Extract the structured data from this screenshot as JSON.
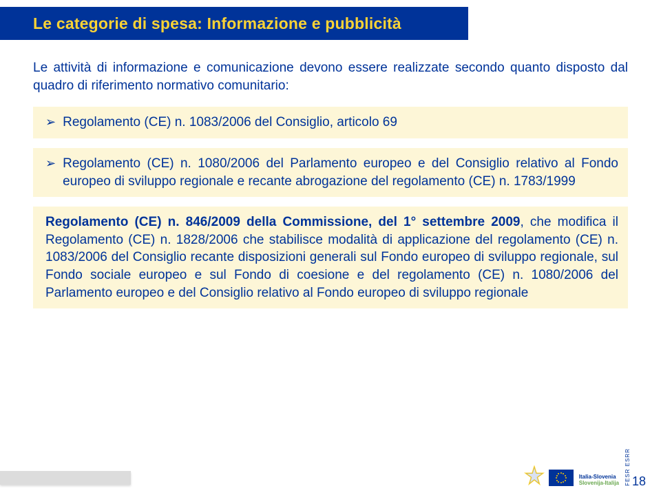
{
  "title": "Le categorie di spesa: Informazione e pubblicità",
  "intro": "Le attività di informazione e comunicazione devono essere realizzate secondo quanto disposto dal quadro di riferimento normativo comunitario:",
  "block1": {
    "bullet": "➢",
    "text": "Regolamento (CE) n. 1083/2006 del Consiglio, articolo 69"
  },
  "block2": {
    "bullet": "➢",
    "lead": "Regolamento (CE) n. 1080/2006 del Parlamento europeo e del Consiglio",
    "rest": " relativo al Fondo europeo di sviluppo regionale e recante abrogazione del regolamento (CE) n. 1783/1999"
  },
  "block3": {
    "p1_bold": "Regolamento (CE) n. 846/2009 della Commissione, del 1° settembre 2009",
    "p1_rest": ", che modifica il Regolamento (CE) n. 1828/2006 che stabilisce modalità di applicazione del regolamento (CE) n. 1083/2006 del Consiglio recante disposizioni generali sul Fondo europeo di sviluppo regionale, sul Fondo sociale europeo e sul Fondo di coesione e del regolamento (CE) n. 1080/2006 del Parlamento europeo e del Consiglio relativo al Fondo europeo di sviluppo regionale"
  },
  "page_number": "18",
  "programme": {
    "line1": "Italia-Slovenia",
    "line2": "Slovenija-Italija",
    "years": "2007\n2013"
  },
  "fesr": "FESR\nESRR",
  "colors": {
    "blue": "#003399",
    "yellow_title": "#fbd335",
    "cream": "#fdf6d7",
    "grey": "#dcdcdc"
  }
}
